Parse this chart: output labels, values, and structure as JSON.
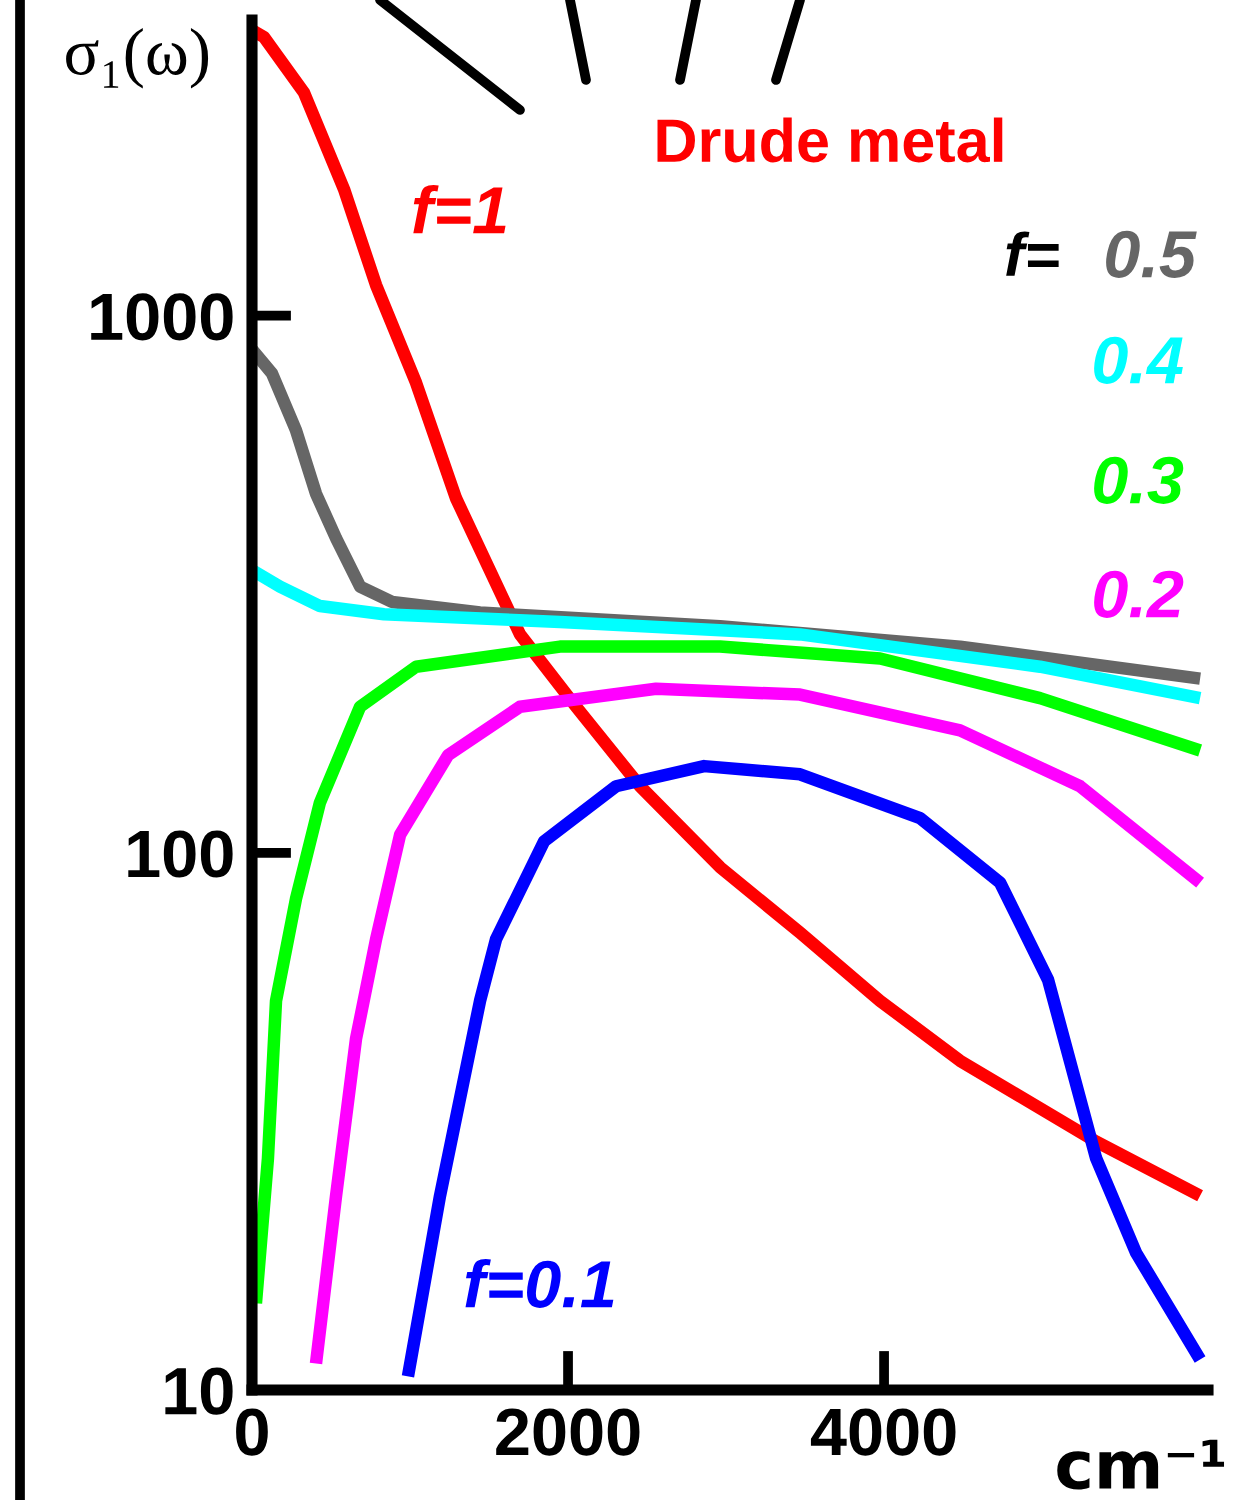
{
  "chart_data": {
    "type": "line",
    "ylabel": "σ₁(ω)",
    "xlabel": "cm⁻¹",
    "log": "y",
    "xlim": [
      0,
      6050
    ],
    "ylim": [
      10,
      3550
    ],
    "xticks": [
      0,
      2000,
      4000
    ],
    "yticks": [
      10,
      100,
      1000
    ],
    "grid": false,
    "marker": "none",
    "line_style": "solid",
    "annotations": [
      "Drude metal",
      "f="
    ],
    "series": [
      {
        "name": "f=1",
        "color": "#ff0000",
        "x": [
          0,
          76,
          329,
          582,
          785,
          1038,
          1291,
          1696,
          2051,
          2456,
          2962,
          3468,
          3975,
          4481,
          5342,
          6000
        ],
        "values": [
          3400,
          3300,
          2600,
          1720,
          1140,
          750,
          457,
          255,
          187,
          133,
          94,
          71,
          53,
          41,
          29,
          23
        ]
      },
      {
        "name": "0.5",
        "color": "#666666",
        "x": [
          0,
          127,
          278,
          405,
          532,
          684,
          886,
          1443,
          2962,
          4481,
          6000
        ],
        "values": [
          865,
          780,
          612,
          466,
          385,
          313,
          293,
          280,
          264,
          242,
          211
        ]
      },
      {
        "name": "0.4",
        "color": "#00ffff",
        "x": [
          0,
          177,
          430,
          835,
          1949,
          3468,
          4987,
          6000
        ],
        "values": [
          336,
          313,
          288,
          278,
          269,
          255,
          222,
          194
        ]
      },
      {
        "name": "0.3",
        "color": "#00ff00",
        "x": [
          25,
          101,
          152,
          278,
          430,
          684,
          1038,
          1949,
          2962,
          3975,
          4987,
          6000
        ],
        "values": [
          14.5,
          27,
          53,
          82,
          124,
          187,
          222,
          242,
          242,
          230,
          194,
          155
        ]
      },
      {
        "name": "0.2",
        "color": "#ff00ff",
        "x": [
          405,
          532,
          658,
          785,
          937,
          1241,
          1696,
          2557,
          3468,
          4481,
          5241,
          6000
        ],
        "values": [
          11.2,
          23,
          45,
          69,
          108,
          152,
          187,
          202,
          197,
          169,
          133,
          88
        ]
      },
      {
        "name": "f=0.1",
        "color": "#0000ff",
        "x": [
          987,
          1190,
          1443,
          1544,
          1848,
          2304,
          2861,
          3468,
          4228,
          4734,
          5038,
          5342,
          5595,
          6000
        ],
        "values": [
          10.6,
          23,
          53,
          69,
          105,
          133,
          145,
          140,
          116,
          88,
          58,
          27,
          18,
          11.4
        ]
      }
    ]
  }
}
